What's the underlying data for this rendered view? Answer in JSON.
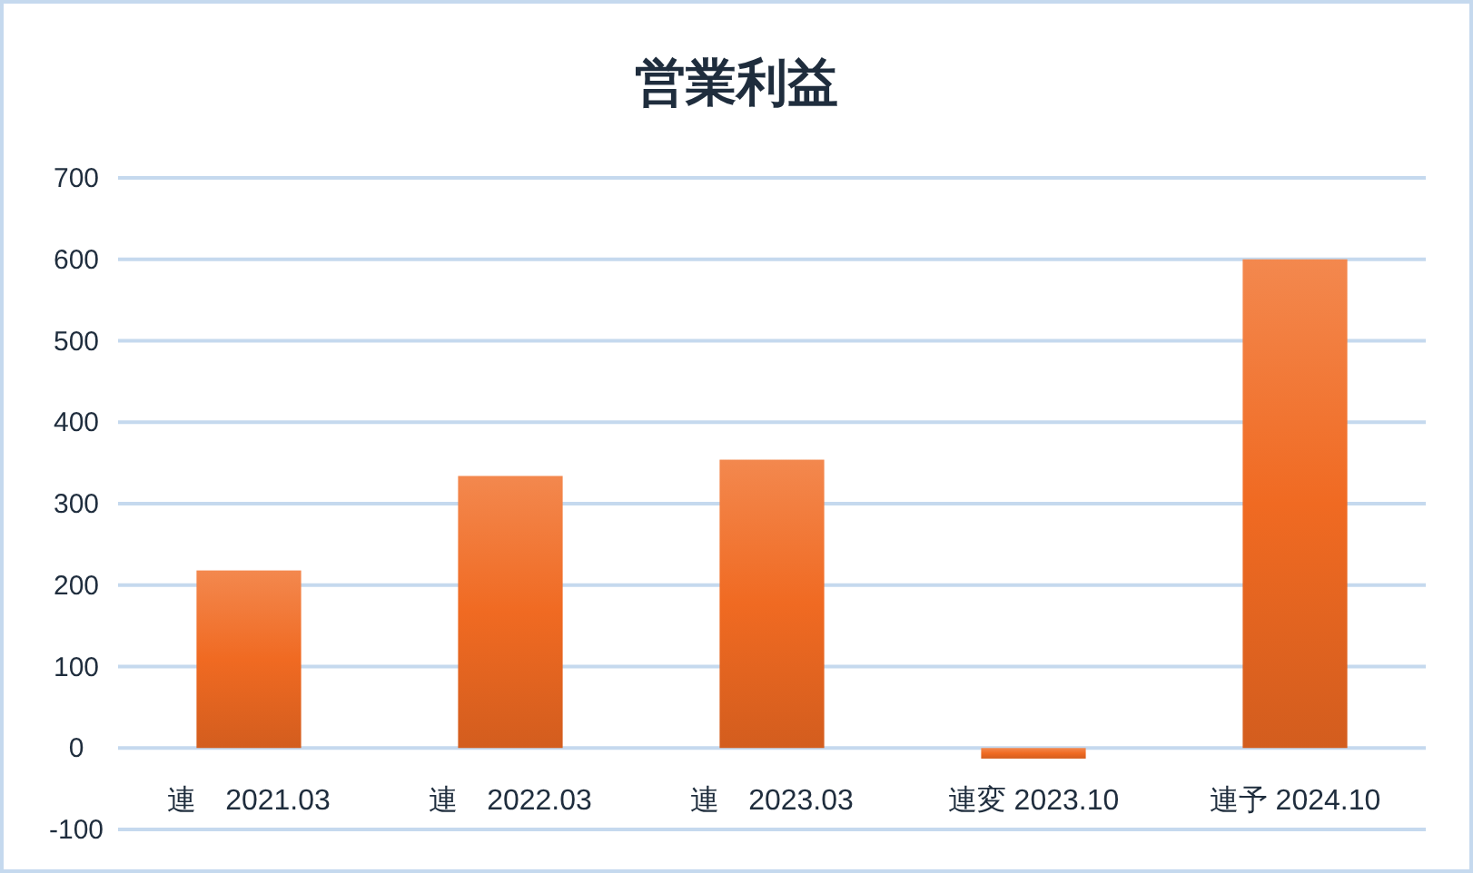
{
  "chart_data": {
    "type": "bar",
    "title": "営業利益",
    "categories": [
      "連　2021.03",
      "連　2022.03",
      "連　2023.03",
      "連変 2023.10",
      "連予 2024.10"
    ],
    "values": [
      218,
      334,
      354,
      -13,
      600
    ],
    "color": "#f06a22",
    "ylim": [
      -100,
      700
    ],
    "yticks": [
      -100,
      0,
      100,
      200,
      300,
      400,
      500,
      600,
      700
    ],
    "grid": "y"
  }
}
